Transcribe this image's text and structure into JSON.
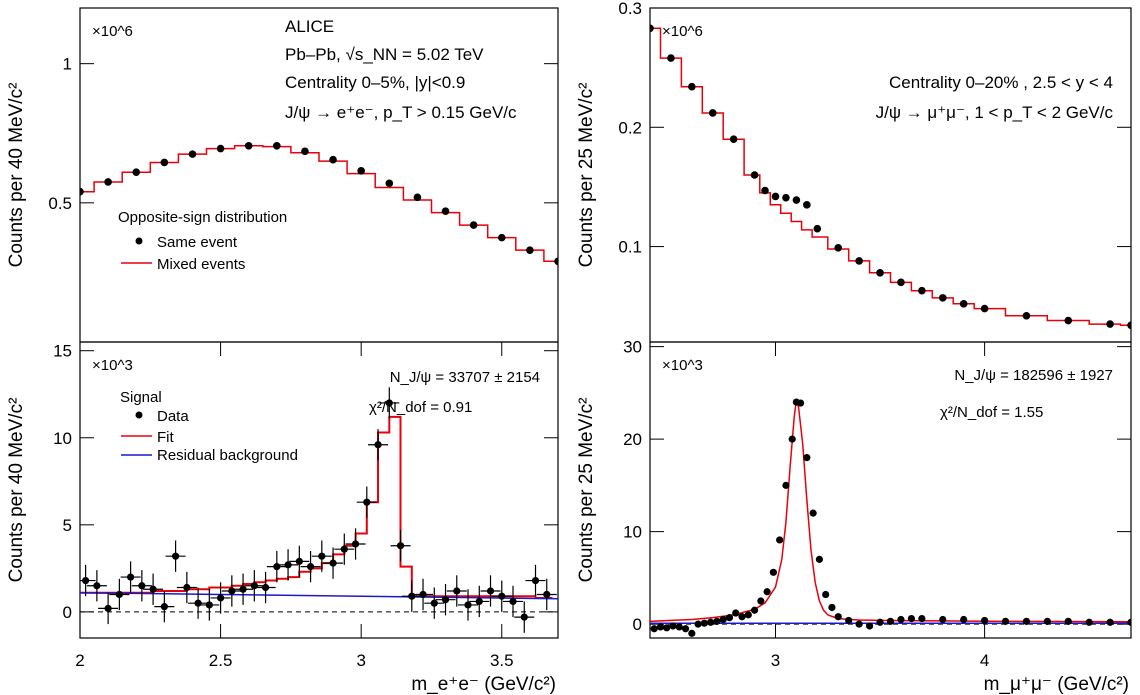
{
  "chart_data": [
    {
      "id": "tl",
      "type": "line",
      "multiplier": "×10^6",
      "ylabel": "Counts per 40 MeV/c²",
      "xlim": [
        2.0,
        3.7
      ],
      "ylim": [
        0.0,
        1.2
      ],
      "yticks": [
        0.5,
        1.0
      ],
      "yticklabels": [
        "0.5",
        "1"
      ],
      "text_lines": [
        "ALICE",
        "Pb–Pb, √s_NN = 5.02 TeV",
        "Centrality 0–5%, |y|<0.9",
        "J/ψ → e⁺e⁻, p_T > 0.15 GeV/c"
      ],
      "legend": {
        "title": "Opposite-sign distribution",
        "entries": [
          "Same event",
          "Mixed events"
        ]
      },
      "series": [
        {
          "name": "Same event",
          "style": "points",
          "x": [
            2.0,
            2.1,
            2.2,
            2.3,
            2.4,
            2.5,
            2.6,
            2.7,
            2.8,
            2.9,
            3.0,
            3.1,
            3.2,
            3.3,
            3.4,
            3.5,
            3.6,
            3.7
          ],
          "y": [
            0.54,
            0.575,
            0.61,
            0.645,
            0.675,
            0.695,
            0.705,
            0.705,
            0.685,
            0.655,
            0.615,
            0.57,
            0.52,
            0.47,
            0.42,
            0.375,
            0.33,
            0.29
          ]
        },
        {
          "name": "Mixed events",
          "style": "step",
          "x": [
            2.0,
            2.1,
            2.2,
            2.3,
            2.4,
            2.5,
            2.6,
            2.7,
            2.8,
            2.9,
            3.0,
            3.1,
            3.2,
            3.3,
            3.4,
            3.5,
            3.6,
            3.7
          ],
          "y": [
            0.54,
            0.575,
            0.61,
            0.645,
            0.675,
            0.695,
            0.705,
            0.702,
            0.68,
            0.65,
            0.605,
            0.555,
            0.51,
            0.465,
            0.42,
            0.375,
            0.33,
            0.29
          ]
        }
      ]
    },
    {
      "id": "tr",
      "type": "line",
      "multiplier": "×10^6",
      "ylabel": "Counts per 25 MeV/c²",
      "xlim": [
        2.4,
        4.7
      ],
      "ylim": [
        0.02,
        0.3
      ],
      "yticks": [
        0.1,
        0.2,
        0.3
      ],
      "yticklabels": [
        "0.1",
        "0.2",
        "0.3"
      ],
      "text_lines": [
        "Centrality 0–20% , 2.5 < y < 4",
        "J/ψ → μ⁺μ⁻, 1 < p_T < 2 GeV/c"
      ],
      "series": [
        {
          "name": "Same event",
          "style": "points",
          "x": [
            2.4,
            2.5,
            2.6,
            2.7,
            2.8,
            2.9,
            2.95,
            3.0,
            3.05,
            3.1,
            3.15,
            3.2,
            3.3,
            3.4,
            3.5,
            3.6,
            3.7,
            3.8,
            3.9,
            4.0,
            4.2,
            4.4,
            4.6,
            4.7
          ],
          "y": [
            0.283,
            0.258,
            0.234,
            0.212,
            0.19,
            0.16,
            0.147,
            0.142,
            0.141,
            0.139,
            0.135,
            0.115,
            0.099,
            0.088,
            0.078,
            0.07,
            0.063,
            0.057,
            0.052,
            0.048,
            0.042,
            0.038,
            0.035,
            0.034
          ]
        },
        {
          "name": "Mixed events",
          "style": "step",
          "x": [
            2.4,
            2.5,
            2.6,
            2.7,
            2.8,
            2.9,
            2.95,
            3.0,
            3.05,
            3.1,
            3.15,
            3.2,
            3.3,
            3.4,
            3.5,
            3.6,
            3.7,
            3.8,
            3.9,
            4.0,
            4.2,
            4.4,
            4.6,
            4.7
          ],
          "y": [
            0.283,
            0.258,
            0.234,
            0.212,
            0.19,
            0.16,
            0.145,
            0.135,
            0.128,
            0.121,
            0.114,
            0.108,
            0.098,
            0.088,
            0.078,
            0.07,
            0.063,
            0.057,
            0.052,
            0.048,
            0.042,
            0.038,
            0.035,
            0.034
          ]
        }
      ]
    },
    {
      "id": "bl",
      "type": "scatter",
      "multiplier": "×10^3",
      "ylabel": "Counts per 40 MeV/c²",
      "xlabel": "m_e⁺e⁻ (GeV/c²)",
      "xlim": [
        2.0,
        3.7
      ],
      "ylim": [
        -1.5,
        15.5
      ],
      "xticks": [
        2.0,
        2.5,
        3.0,
        3.5
      ],
      "xticklabels": [
        "2",
        "2.5",
        "3",
        "3.5"
      ],
      "yticks": [
        0,
        5,
        10,
        15
      ],
      "yticklabels": [
        "0",
        "5",
        "10",
        "15"
      ],
      "annotations": [
        "N_J/ψ = 33707 ± 2154",
        "χ²/N_dof = 0.91"
      ],
      "legend": {
        "title": "Signal",
        "entries": [
          "Data",
          "Fit",
          "Residual background"
        ]
      },
      "series": [
        {
          "name": "Data",
          "style": "points_err",
          "x": [
            2.02,
            2.06,
            2.1,
            2.14,
            2.18,
            2.22,
            2.26,
            2.3,
            2.34,
            2.38,
            2.42,
            2.46,
            2.5,
            2.54,
            2.58,
            2.62,
            2.66,
            2.7,
            2.74,
            2.78,
            2.82,
            2.86,
            2.9,
            2.94,
            2.98,
            3.02,
            3.06,
            3.1,
            3.14,
            3.18,
            3.22,
            3.26,
            3.3,
            3.34,
            3.38,
            3.42,
            3.46,
            3.5,
            3.54,
            3.58,
            3.62,
            3.66
          ],
          "y": [
            1.8,
            1.5,
            0.2,
            1.0,
            2.0,
            1.5,
            1.3,
            0.3,
            3.2,
            1.4,
            0.5,
            0.4,
            0.8,
            1.2,
            1.3,
            1.5,
            1.4,
            2.6,
            2.7,
            2.9,
            2.6,
            3.2,
            2.8,
            3.6,
            3.9,
            6.3,
            9.6,
            12.0,
            3.8,
            0.9,
            1.0,
            0.5,
            0.7,
            1.2,
            0.4,
            0.6,
            1.2,
            0.9,
            0.6,
            -0.3,
            1.8,
            1.0
          ],
          "yerr": [
            0.9,
            0.9,
            0.9,
            0.9,
            0.9,
            0.9,
            0.9,
            0.9,
            0.9,
            0.9,
            0.9,
            0.9,
            0.9,
            0.9,
            0.9,
            0.9,
            0.9,
            0.9,
            0.9,
            0.9,
            0.9,
            0.9,
            0.9,
            0.9,
            0.9,
            0.9,
            0.9,
            0.9,
            0.9,
            0.9,
            0.9,
            0.9,
            0.9,
            0.9,
            0.9,
            0.9,
            0.9,
            0.9,
            0.9,
            0.9,
            0.9,
            0.9
          ]
        },
        {
          "name": "Fit",
          "style": "step",
          "x": [
            2.0,
            2.04,
            2.08,
            2.12,
            2.16,
            2.2,
            2.24,
            2.28,
            2.32,
            2.36,
            2.4,
            2.44,
            2.48,
            2.52,
            2.56,
            2.6,
            2.64,
            2.68,
            2.72,
            2.76,
            2.8,
            2.84,
            2.88,
            2.92,
            2.96,
            3.0,
            3.04,
            3.08,
            3.12,
            3.16,
            3.2,
            3.24,
            3.28,
            3.32,
            3.36,
            3.4,
            3.44,
            3.48,
            3.52,
            3.56,
            3.6,
            3.64,
            3.68
          ],
          "y": [
            1.1,
            1.1,
            1.1,
            1.1,
            1.1,
            1.1,
            1.1,
            1.2,
            1.2,
            1.2,
            1.3,
            1.3,
            1.4,
            1.4,
            1.5,
            1.6,
            1.7,
            1.8,
            1.9,
            2.0,
            2.3,
            2.5,
            2.8,
            3.3,
            3.8,
            4.5,
            6.3,
            10.3,
            11.2,
            2.6,
            0.9,
            0.9,
            0.9,
            0.9,
            0.9,
            0.9,
            0.9,
            0.9,
            0.9,
            0.9,
            0.9,
            0.8,
            0.8
          ]
        },
        {
          "name": "Residual background",
          "style": "line",
          "x": [
            2.0,
            2.5,
            3.0,
            3.5,
            3.7
          ],
          "y": [
            1.1,
            1.0,
            0.9,
            0.8,
            0.75
          ]
        }
      ]
    },
    {
      "id": "br",
      "type": "scatter",
      "multiplier": "×10^3",
      "ylabel": "Counts per 25 MeV/c²",
      "xlabel": "m_μ⁺μ⁻ (GeV/c²)",
      "xlim": [
        2.4,
        4.7
      ],
      "ylim": [
        -1.5,
        30.5
      ],
      "xticks": [
        3,
        4
      ],
      "xticklabels": [
        "3",
        "4"
      ],
      "yticks": [
        0,
        10,
        20,
        30
      ],
      "yticklabels": [
        "0",
        "10",
        "20",
        "30"
      ],
      "annotations": [
        "N_J/ψ = 182596 ± 1927",
        "χ²/N_dof = 1.55"
      ],
      "series": [
        {
          "name": "Data",
          "style": "points",
          "x": [
            2.42,
            2.45,
            2.48,
            2.51,
            2.54,
            2.57,
            2.6,
            2.63,
            2.66,
            2.69,
            2.72,
            2.75,
            2.78,
            2.81,
            2.84,
            2.87,
            2.9,
            2.93,
            2.96,
            2.99,
            3.02,
            3.05,
            3.08,
            3.1,
            3.12,
            3.15,
            3.18,
            3.21,
            3.24,
            3.27,
            3.3,
            3.35,
            3.4,
            3.45,
            3.5,
            3.55,
            3.6,
            3.65,
            3.7,
            3.8,
            3.9,
            4.0,
            4.1,
            4.2,
            4.3,
            4.4,
            4.5,
            4.6,
            4.7
          ],
          "y": [
            -0.5,
            -0.3,
            -0.4,
            -0.2,
            -0.3,
            -0.5,
            -1.0,
            0.0,
            0.1,
            0.2,
            0.3,
            0.5,
            0.7,
            1.2,
            0.8,
            1.0,
            1.5,
            2.5,
            3.5,
            5.6,
            9.1,
            15.0,
            20.0,
            24.0,
            23.9,
            18.0,
            12.0,
            7.0,
            3.2,
            1.8,
            0.8,
            0.4,
            0.0,
            -0.2,
            0.2,
            0.3,
            0.5,
            0.6,
            0.6,
            0.5,
            0.5,
            0.4,
            0.3,
            0.3,
            0.3,
            0.3,
            0.2,
            0.2,
            0.2
          ]
        },
        {
          "name": "Fit",
          "style": "line",
          "x": [
            2.4,
            2.5,
            2.6,
            2.7,
            2.8,
            2.9,
            2.95,
            3.0,
            3.03,
            3.05,
            3.07,
            3.09,
            3.1,
            3.11,
            3.13,
            3.15,
            3.17,
            3.19,
            3.21,
            3.23,
            3.25,
            3.3,
            3.4,
            3.5,
            3.6,
            3.8,
            4.0,
            4.2,
            4.4,
            4.7
          ],
          "y": [
            0.3,
            0.4,
            0.5,
            0.7,
            1.0,
            1.6,
            2.3,
            4.0,
            7.0,
            11.0,
            17.0,
            22.5,
            24.2,
            23.5,
            19.5,
            13.5,
            8.0,
            4.5,
            2.5,
            1.5,
            1.0,
            0.6,
            0.45,
            0.4,
            0.38,
            0.35,
            0.32,
            0.3,
            0.28,
            0.25
          ]
        },
        {
          "name": "Residual background",
          "style": "line",
          "x": [
            2.4,
            3.0,
            4.0,
            4.7
          ],
          "y": [
            0.1,
            0.1,
            0.1,
            0.1
          ]
        }
      ]
    }
  ]
}
